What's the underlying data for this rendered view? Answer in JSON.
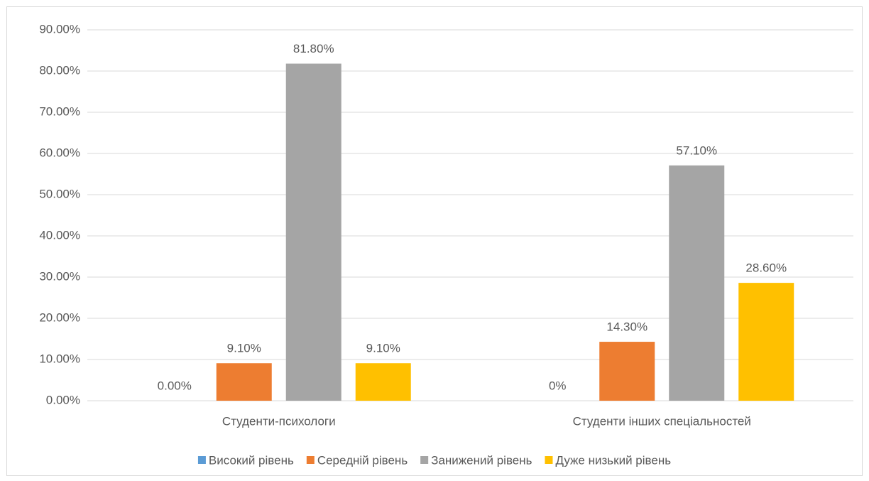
{
  "chart_data": {
    "type": "bar",
    "categories": [
      "Студенти-психологи",
      "Студенти інших спеціальностей"
    ],
    "series": [
      {
        "name": "Високий рівень",
        "color": "#5b9bd5",
        "values": [
          0,
          0
        ],
        "value_labels": [
          "0.00%",
          "0%"
        ]
      },
      {
        "name": "Середній рівень",
        "color": "#ed7d31",
        "values": [
          9.1,
          14.3
        ],
        "value_labels": [
          "9.10%",
          "14.30%"
        ]
      },
      {
        "name": "Занижений рівень",
        "color": "#a5a5a5",
        "values": [
          81.8,
          57.1
        ],
        "value_labels": [
          "81.80%",
          "57.10%"
        ]
      },
      {
        "name": "Дуже низький рівень",
        "color": "#ffc000",
        "values": [
          9.1,
          28.6
        ],
        "value_labels": [
          "9.10%",
          "28.60%"
        ]
      }
    ],
    "ylim": [
      0,
      90
    ],
    "yticks": [
      {
        "value": 0,
        "label": "0.00%"
      },
      {
        "value": 10,
        "label": "10.00%"
      },
      {
        "value": 20,
        "label": "20.00%"
      },
      {
        "value": 30,
        "label": "30.00%"
      },
      {
        "value": 40,
        "label": "40.00%"
      },
      {
        "value": 50,
        "label": "50.00%"
      },
      {
        "value": 60,
        "label": "60.00%"
      },
      {
        "value": 70,
        "label": "70.00%"
      },
      {
        "value": 80,
        "label": "80.00%"
      },
      {
        "value": 90,
        "label": "90.00%"
      }
    ],
    "grid": true,
    "legend": "bottom"
  }
}
